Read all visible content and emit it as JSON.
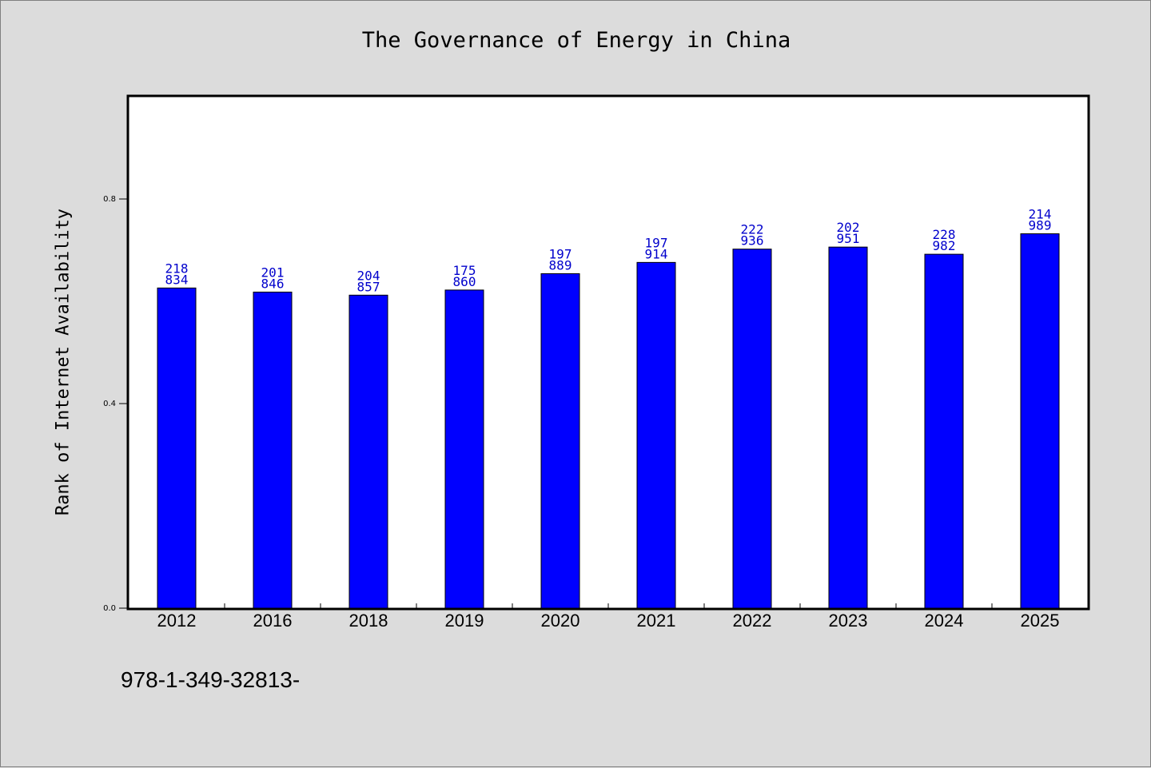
{
  "chart_data": {
    "type": "bar",
    "title": "The Governance of Energy in China",
    "xlabel": "",
    "ylabel": "Rank of Internet Availability",
    "ylim": [
      0,
      1.0
    ],
    "yticks": [
      "0.0",
      "0.4",
      "0.8"
    ],
    "grid": false,
    "legend": "none",
    "bar_color": "#0000ff",
    "label_color": "#0000cc",
    "categories": [
      "2012",
      "2016",
      "2018",
      "2019",
      "2020",
      "2021",
      "2022",
      "2023",
      "2024",
      "2025"
    ],
    "values": [
      0.626,
      0.618,
      0.612,
      0.622,
      0.654,
      0.676,
      0.702,
      0.706,
      0.692,
      0.732
    ],
    "data_labels": [
      [
        "218",
        "834"
      ],
      [
        "201",
        "846"
      ],
      [
        "204",
        "857"
      ],
      [
        "175",
        "860"
      ],
      [
        "197",
        "889"
      ],
      [
        "197",
        "914"
      ],
      [
        "222",
        "936"
      ],
      [
        "202",
        "951"
      ],
      [
        "228",
        "982"
      ],
      [
        "214",
        "989"
      ]
    ]
  },
  "footer": {
    "isbn": "978-1-349-32813-"
  }
}
